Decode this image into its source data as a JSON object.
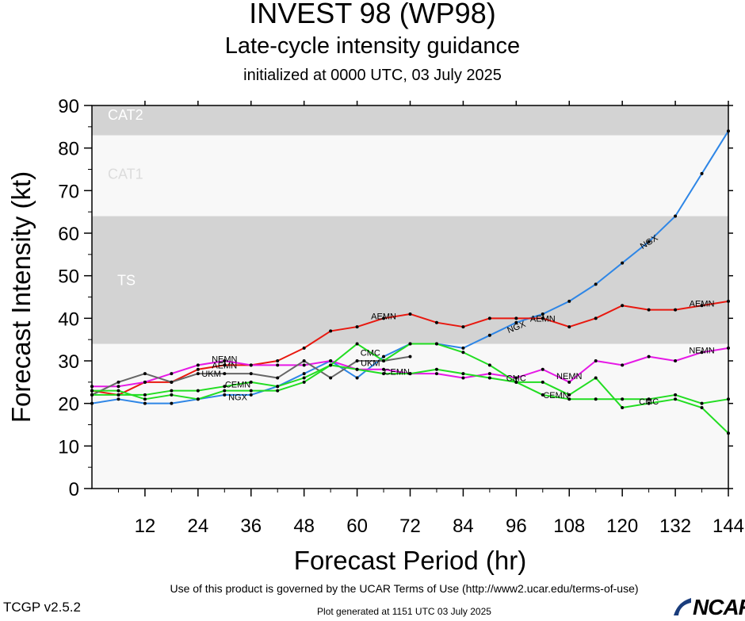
{
  "title": "INVEST 98 (WP98)",
  "subtitle": "Late-cycle intensity guidance",
  "init_line": "initialized at 0000 UTC, 03 July 2025",
  "footer": {
    "terms": "Use of this product is governed by the UCAR Terms of Use (http://www2.ucar.edu/terms-of-use)",
    "version": "TCGP v2.5.2",
    "generated": "Plot generated at 1151 UTC   03 July 2025",
    "logo_text": "NCAR"
  },
  "chart_data": {
    "type": "line",
    "xlabel": "Forecast Period (hr)",
    "ylabel": "Forecast Intensity (kt)",
    "xlim": [
      0,
      144
    ],
    "ylim": [
      0,
      90
    ],
    "xticks": [
      12,
      24,
      36,
      48,
      60,
      72,
      84,
      96,
      108,
      120,
      132,
      144
    ],
    "yticks": [
      0,
      10,
      20,
      30,
      40,
      50,
      60,
      70,
      80,
      90
    ],
    "bands": [
      {
        "label": "TS",
        "from": 34,
        "to": 64,
        "color": "#d3d3d3"
      },
      {
        "label": "CAT1",
        "from": 64,
        "to": 83,
        "color": "#f8f8f8"
      },
      {
        "label": "CAT2",
        "from": 83,
        "to": 90,
        "color": "#d3d3d3"
      }
    ],
    "series": [
      {
        "name": "NGX",
        "color": "#2e86e6",
        "x": [
          0,
          6,
          12,
          18,
          24,
          30,
          36,
          42,
          48,
          54,
          60,
          66,
          72,
          78,
          84,
          90,
          96,
          102,
          108,
          114,
          120,
          126,
          132,
          138,
          144
        ],
        "y": [
          20,
          21,
          20,
          20,
          21,
          22,
          22,
          24,
          27,
          30,
          26,
          31,
          34,
          34,
          33,
          36,
          39,
          41,
          44,
          48,
          53,
          58,
          64,
          74,
          84
        ],
        "labels": [
          {
            "x": 33,
            "y": 21.5
          },
          {
            "x": 96,
            "y": 38
          },
          {
            "x": 126,
            "y": 58
          }
        ]
      },
      {
        "name": "AEMN",
        "color": "#e8180f",
        "x": [
          0,
          6,
          12,
          18,
          24,
          30,
          36,
          42,
          48,
          54,
          60,
          66,
          72,
          78,
          84,
          90,
          96,
          102,
          108,
          114,
          120,
          126,
          132,
          138,
          144
        ],
        "y": [
          23,
          22,
          25,
          25,
          28,
          29,
          29,
          30,
          33,
          37,
          38,
          40,
          41,
          39,
          38,
          40,
          40,
          40,
          38,
          40,
          43,
          42,
          42,
          43,
          44
        ],
        "labels": [
          {
            "x": 30,
            "y": 29
          },
          {
            "x": 66,
            "y": 40.5
          },
          {
            "x": 102,
            "y": 40
          },
          {
            "x": 138,
            "y": 43.5
          }
        ]
      },
      {
        "name": "NEMN",
        "color": "#e619e6",
        "x": [
          0,
          6,
          12,
          18,
          24,
          30,
          36,
          42,
          48,
          54,
          60,
          66,
          72,
          78,
          84,
          90,
          96,
          102,
          108,
          114,
          120,
          126,
          132,
          138,
          144
        ],
        "y": [
          24,
          24,
          25,
          27,
          29,
          30,
          29,
          29,
          29,
          30,
          28,
          28,
          27,
          27,
          26,
          27,
          26,
          28,
          25,
          30,
          29,
          31,
          30,
          32,
          33
        ],
        "labels": [
          {
            "x": 30,
            "y": 30.5
          },
          {
            "x": 108,
            "y": 26.5
          },
          {
            "x": 138,
            "y": 32.5
          }
        ]
      },
      {
        "name": "UKM",
        "color": "#666666",
        "x": [
          0,
          6,
          12,
          18,
          24,
          30,
          36,
          42,
          48,
          54,
          60,
          66,
          72
        ],
        "y": [
          22,
          25,
          27,
          25,
          27,
          27,
          27,
          26,
          30,
          26,
          30,
          30,
          31
        ],
        "labels": [
          {
            "x": 27,
            "y": 27
          },
          {
            "x": 63,
            "y": 29.5
          }
        ]
      },
      {
        "name": "CEMN",
        "color": "#22dd22",
        "x": [
          0,
          6,
          12,
          18,
          24,
          30,
          36,
          42,
          48,
          54,
          60,
          66,
          72,
          78,
          84,
          90,
          96,
          102,
          108,
          114,
          120,
          126,
          132,
          138,
          144
        ],
        "y": [
          22,
          22,
          22,
          23,
          23,
          24,
          25,
          24,
          26,
          29,
          28,
          27,
          27,
          28,
          27,
          26,
          25,
          25,
          22,
          26,
          19,
          20,
          21,
          19,
          13
        ],
        "labels": [
          {
            "x": 33,
            "y": 24.5
          },
          {
            "x": 69,
            "y": 27.5
          },
          {
            "x": 105,
            "y": 22
          }
        ]
      },
      {
        "name": "CMC",
        "color": "#22dd22",
        "x": [
          0,
          6,
          12,
          18,
          24,
          30,
          36,
          42,
          48,
          54,
          60,
          66,
          72,
          78,
          84,
          90,
          96,
          102,
          108,
          114,
          120,
          126,
          132,
          138,
          144
        ],
        "y": [
          23,
          23,
          21,
          22,
          21,
          23,
          23,
          23,
          25,
          29,
          34,
          30,
          34,
          34,
          32,
          29,
          25,
          22,
          21,
          21,
          21,
          21,
          22,
          20,
          21
        ],
        "labels": [
          {
            "x": 63,
            "y": 32
          },
          {
            "x": 96,
            "y": 26
          },
          {
            "x": 126,
            "y": 20.5
          }
        ]
      }
    ]
  }
}
